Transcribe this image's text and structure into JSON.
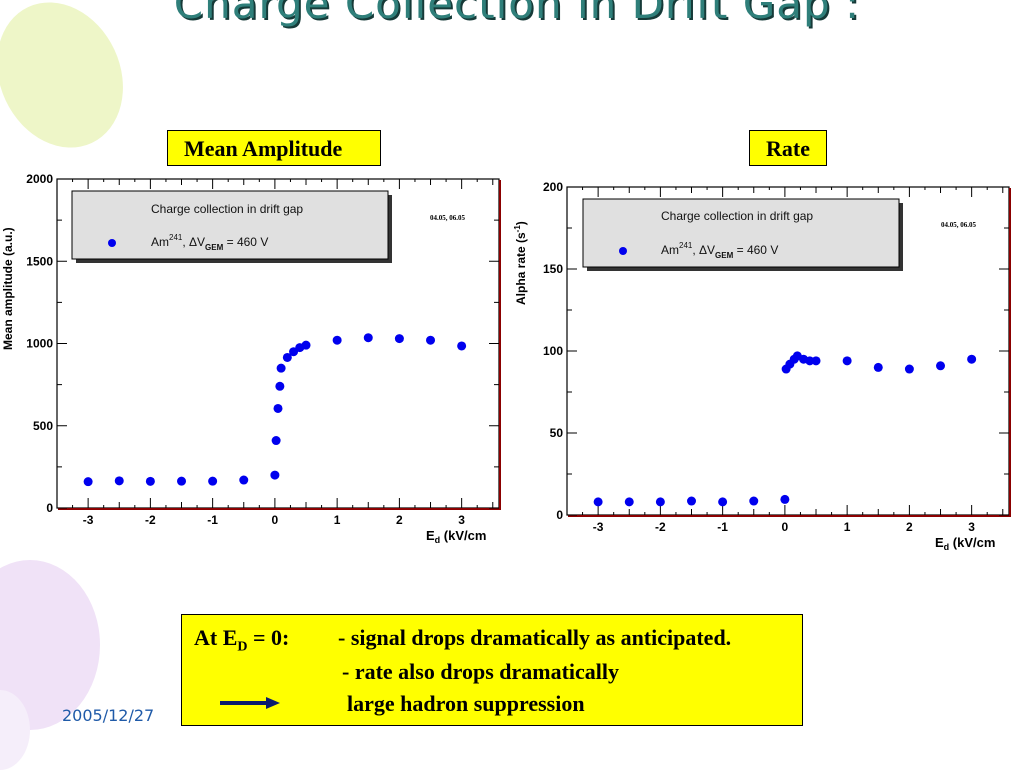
{
  "slide": {
    "title": "Charge Collection in Drift Gap :",
    "date": "2005/12/27"
  },
  "panels": {
    "left_label": "Mean Amplitude",
    "right_label": "Rate"
  },
  "note": {
    "prefix": "At E",
    "prefix_sub": "D",
    "prefix_suffix": " = 0:",
    "line1": "- signal drops dramatically as anticipated.",
    "line2": "- rate also drops dramatically",
    "line3": "large hadron suppression"
  },
  "colors": {
    "title": "#2f7f7a",
    "highlight": "#ffff00",
    "marker": "#0000ee",
    "legend_bg": "#e0e0e0",
    "frame_red": "#8b0000",
    "date": "#1f5aa8",
    "arrow": "#0a1a6e"
  },
  "chart_data": [
    {
      "type": "scatter",
      "title": "Mean Amplitude",
      "xlabel": "E_d (kV/cm",
      "ylabel": "Mean amplitude (a.u.)",
      "xlim": [
        -3.5,
        3.6
      ],
      "ylim": [
        0,
        2000
      ],
      "xticks": [
        -3,
        -2,
        -1,
        0,
        1,
        2,
        3
      ],
      "yticks": [
        0,
        500,
        1000,
        1500,
        2000
      ],
      "legend_title": "Charge collection in drift gap",
      "legend_entry": "Am",
      "legend_entry_sup": "241",
      "legend_entry_rest": ",   ΔV",
      "legend_entry_sub": "GEM",
      "legend_entry_end": " = 460 V",
      "annotation": "04.05, 06.05",
      "grid": false,
      "series": [
        {
          "x": [
            -3,
            -2.5,
            -2,
            -1.5,
            -1,
            -0.5,
            0,
            0.02,
            0.05,
            0.08,
            0.1,
            0.2,
            0.3,
            0.4,
            0.5,
            1,
            1.5,
            2,
            2.5,
            3
          ],
          "y": [
            160,
            165,
            162,
            163,
            163,
            170,
            200,
            410,
            605,
            740,
            850,
            915,
            950,
            975,
            990,
            1020,
            1035,
            1030,
            1020,
            985
          ]
        }
      ]
    },
    {
      "type": "scatter",
      "title": "Rate",
      "xlabel": "E_d (kV/cm",
      "ylabel": "Alpha rate (s",
      "ylabel_sup": "-1",
      "ylabel_end": ")",
      "xlim": [
        -3.5,
        3.6
      ],
      "ylim": [
        0,
        200
      ],
      "xticks": [
        -3,
        -2,
        -1,
        0,
        1,
        2,
        3
      ],
      "yticks": [
        0,
        50,
        100,
        150,
        200
      ],
      "legend_title": "Charge collection in drift gap",
      "legend_entry": "Am",
      "legend_entry_sup": "241",
      "legend_entry_rest": ",   ΔV",
      "legend_entry_sub": "GEM",
      "legend_entry_end": " = 460 V",
      "annotation": "04.05, 06.05",
      "grid": false,
      "series": [
        {
          "x": [
            -3,
            -2.5,
            -2,
            -1.5,
            -1,
            -0.5,
            0,
            0.02,
            0.08,
            0.15,
            0.2,
            0.3,
            0.4,
            0.5,
            1,
            1.5,
            2,
            2.5,
            3
          ],
          "y": [
            8,
            8,
            8,
            8.5,
            8,
            8.5,
            9.5,
            89,
            92,
            95,
            97,
            95,
            94,
            94,
            94,
            90,
            89,
            91,
            95
          ]
        }
      ]
    }
  ]
}
